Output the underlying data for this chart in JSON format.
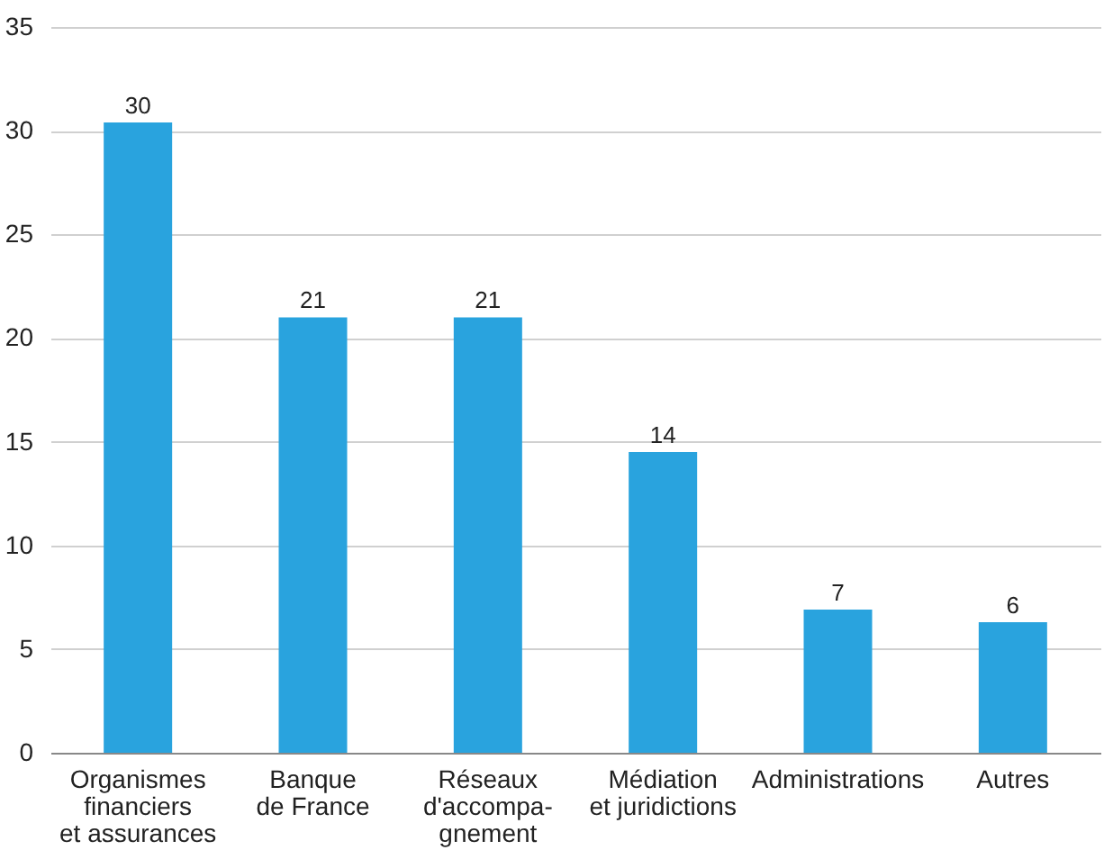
{
  "chart_data": {
    "type": "bar",
    "categories": [
      "Organismes\nfinanciers\net assurances",
      "Banque\nde France",
      "Réseaux\nd'accompa-\ngnement",
      "Médiation\net juridictions",
      "Administrations",
      "Autres"
    ],
    "values": [
      30.4,
      21,
      21,
      14.5,
      6.9,
      6.3
    ],
    "value_labels": [
      "30",
      "21",
      "21",
      "14",
      "7",
      "6"
    ],
    "color": "#29a3de",
    "ylim": [
      0,
      35
    ],
    "yticks": [
      0,
      5,
      10,
      15,
      20,
      25,
      30,
      35
    ],
    "grid": "y"
  }
}
